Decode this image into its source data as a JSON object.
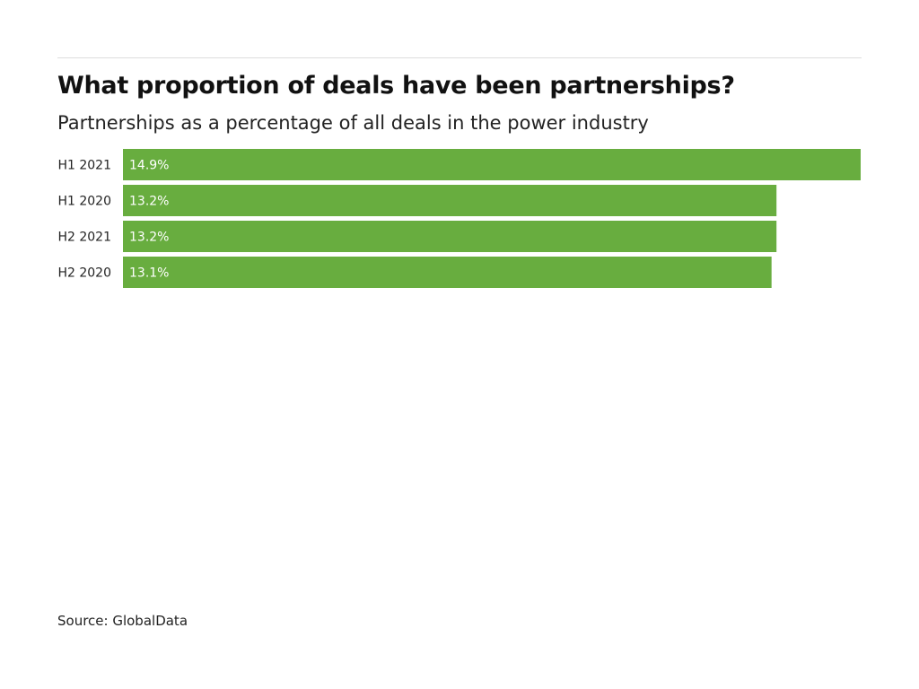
{
  "header": {
    "title": "What proportion of deals have been partnerships?",
    "subtitle": "Partnerships as a percentage of all deals in the power industry"
  },
  "footer": {
    "source": "Source: GlobalData"
  },
  "chart_data": {
    "type": "bar",
    "orientation": "horizontal",
    "title": "What proportion of deals have been partnerships?",
    "subtitle": "Partnerships as a percentage of all deals in the power industry",
    "categories": [
      "H1 2021",
      "H1 2020",
      "H2 2021",
      "H2 2020"
    ],
    "values": [
      14.9,
      13.2,
      13.2,
      13.1
    ],
    "value_labels": [
      "14.9%",
      "13.2%",
      "13.2%",
      "13.1%"
    ],
    "xlabel": "",
    "ylabel": "",
    "xlim": [
      0,
      14.9
    ],
    "grid": false,
    "legend": "none",
    "bar_color": "#68ad3f"
  }
}
